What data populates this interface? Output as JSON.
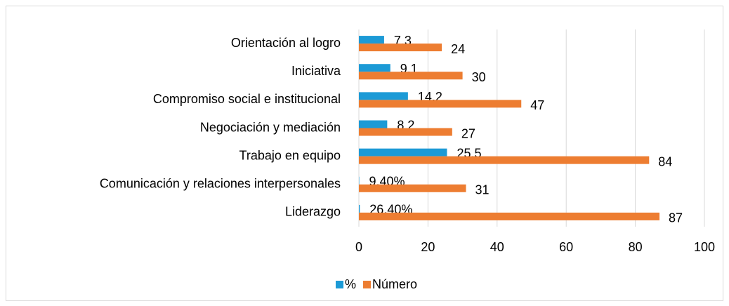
{
  "chart_data": {
    "type": "bar",
    "orientation": "horizontal",
    "categories": [
      "Orientación al logro",
      "Iniciativa",
      "Compromiso social e institucional",
      "Negociación y mediación",
      "Trabajo en equipo",
      "Comunicación y relaciones interpersonales",
      "Liderazgo"
    ],
    "series": [
      {
        "name": "%",
        "color": "#1c9ad6",
        "values": [
          7.3,
          9.1,
          14.2,
          8.2,
          25.5,
          0.094,
          0.264
        ],
        "value_labels": [
          "7,3",
          "9,1",
          "14,2",
          "8,2",
          "25,5",
          "9,40%",
          "26,40%"
        ]
      },
      {
        "name": "Número",
        "color": "#ed7d31",
        "values": [
          24,
          30,
          47,
          27,
          84,
          31,
          87
        ]
      }
    ],
    "xlim": [
      0,
      100
    ],
    "xticks": [
      0,
      20,
      40,
      60,
      80,
      100
    ],
    "grid": true,
    "legend": "bottom"
  }
}
